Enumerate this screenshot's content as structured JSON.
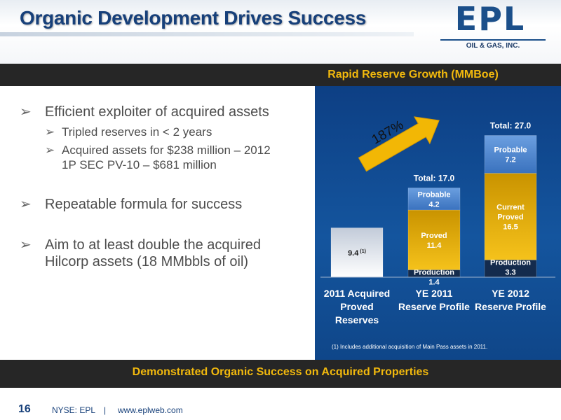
{
  "header": {
    "title": "Organic Development Drives Success",
    "logo_text": "EPL",
    "logo_sub": "OIL & GAS, INC."
  },
  "bullets": [
    {
      "text": "Efficient exploiter of acquired assets",
      "sub": [
        "Tripled reserves in < 2 years",
        "Acquired assets for $238 million – 2012 1P SEC PV-10 – $681 million"
      ]
    },
    {
      "text": "Repeatable formula for success",
      "sub": []
    },
    {
      "text": "Aim to at least double the acquired Hilcorp assets (18 MMbbls of oil)",
      "sub": []
    }
  ],
  "tagline": "Demonstrated Organic Success on Acquired Properties",
  "footer": {
    "page": "16",
    "ticker": "NYSE: EPL",
    "separator": "|",
    "url": "www.eplweb.com"
  },
  "chart_data": {
    "type": "bar",
    "stacked": true,
    "title": "Rapid Reserve Growth (MMBoe)",
    "categories": [
      "2011 Acquired Proved Reserves",
      "YE 2011 Reserve Profile",
      "YE 2012 Reserve Profile"
    ],
    "series": [
      {
        "name": "Acquired",
        "values": [
          9.4,
          0,
          0
        ],
        "labels": [
          "9.4",
          "",
          ""
        ],
        "footnote_ref": "(1)",
        "color": "#d9dfe8"
      },
      {
        "name": "Production",
        "values": [
          0,
          1.4,
          3.3
        ],
        "labels": [
          "",
          "Production 1.4",
          "Production 3.3"
        ],
        "color": "#13294a"
      },
      {
        "name": "Proved",
        "values": [
          0,
          11.4,
          16.5
        ],
        "labels": [
          "",
          "Proved 11.4",
          "Current Proved 16.5"
        ],
        "color": "#f2b705"
      },
      {
        "name": "Probable",
        "values": [
          0,
          4.2,
          7.2
        ],
        "labels": [
          "",
          "Probable 4.2",
          "Probable 7.2"
        ],
        "color": "#4a86d0"
      }
    ],
    "totals": [
      "",
      "Total: 17.0",
      "Total:  27.0"
    ],
    "growth_arrow_label": "187%",
    "footnote": "(1)  Includes additional acquisition of Main Pass assets in 2011.",
    "ylim": [
      0,
      27
    ]
  }
}
